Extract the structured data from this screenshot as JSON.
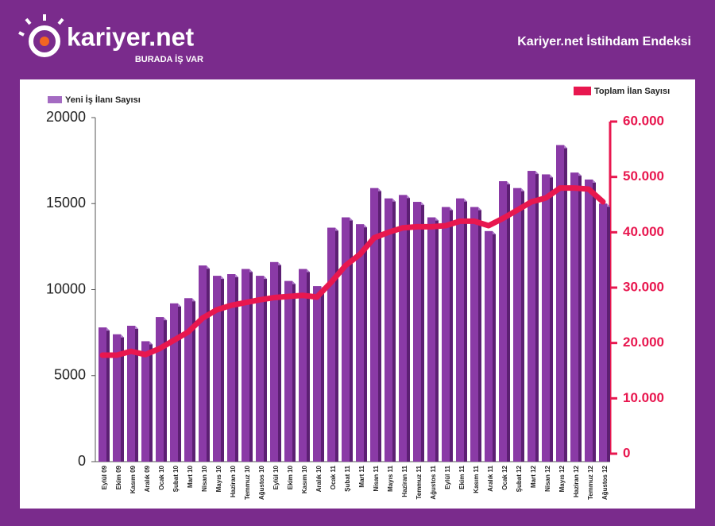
{
  "header": {
    "logo": "kariyer.net",
    "tagline": "BURADA İŞ VAR",
    "title": "Kariyer.net İstihdam Endeksi"
  },
  "chart_data": {
    "type": "bar",
    "categories": [
      "Eylül 09",
      "Ekim 09",
      "Kasım 09",
      "Aralık 09",
      "Ocak 10",
      "Şubat 10",
      "Mart 10",
      "Nisan 10",
      "Mayıs 10",
      "Haziran 10",
      "Temmuz 10",
      "Ağustos 10",
      "Eylül 10",
      "Ekim 10",
      "Kasım 10",
      "Aralık 10",
      "Ocak 11",
      "Şubat 11",
      "Mart 11",
      "Nisan 11",
      "Mayıs 11",
      "Haziran 11",
      "Temmuz 11",
      "Ağustos 11",
      "Eylül 11",
      "Ekim 11",
      "Kasım 11",
      "Aralık 11",
      "Ocak 12",
      "Şubat 12",
      "Mart 12",
      "Nisan 12",
      "Mayıs 12",
      "Haziran 12",
      "Temmuz 12",
      "Ağustos 12"
    ],
    "series": [
      {
        "name": "Yeni İş İlanı Sayısı",
        "color": "#8a3aa6",
        "values": [
          7800,
          7400,
          7900,
          7000,
          8400,
          9200,
          9500,
          11400,
          10800,
          10900,
          11200,
          10800,
          11600,
          10500,
          11200,
          10200,
          13600,
          14200,
          13800,
          15900,
          15300,
          15500,
          15100,
          14200,
          14800,
          15300,
          14800,
          13400,
          16300,
          15900,
          16900,
          16700,
          18400,
          16800,
          16400,
          15000
        ]
      },
      {
        "name": "Toplam İlan Sayısı",
        "color": "#e8174f",
        "type": "line",
        "axis": "y2",
        "values": [
          17800,
          17800,
          18500,
          17900,
          19000,
          20500,
          22000,
          24500,
          26000,
          26800,
          27300,
          27800,
          28200,
          28400,
          28600,
          28300,
          31000,
          34000,
          36000,
          39000,
          40000,
          40800,
          41000,
          41000,
          41200,
          42000,
          42000,
          41200,
          42500,
          44000,
          45500,
          46200,
          48000,
          48000,
          47800,
          45500
        ]
      }
    ],
    "ylim": [
      0,
      20000
    ],
    "yticks": [
      0,
      5000,
      10000,
      15000,
      20000
    ],
    "y2lim": [
      0,
      60000
    ],
    "y2ticks": [
      0,
      {
        "value": 10000,
        "label": "10.000"
      },
      {
        "value": 20000,
        "label": "20.000"
      },
      {
        "value": 30000,
        "label": "30.000"
      },
      {
        "value": 40000,
        "label": "40.000"
      },
      {
        "value": 50000,
        "label": "50.000"
      },
      {
        "value": 60000,
        "label": "60.000"
      }
    ]
  }
}
